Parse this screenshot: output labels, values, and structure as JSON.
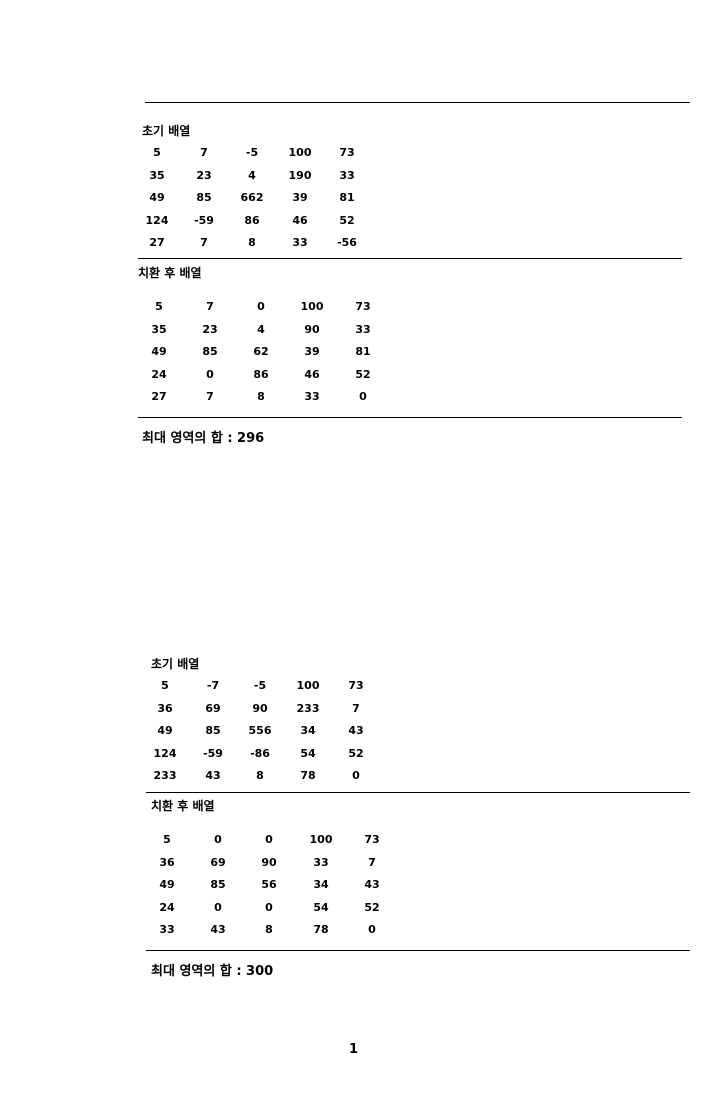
{
  "block1": {
    "initial_label": "초기 배열",
    "initial": [
      [
        "5",
        "7",
        "-5",
        "100",
        "73"
      ],
      [
        "35",
        "23",
        "4",
        "190",
        "33"
      ],
      [
        "49",
        "85",
        "662",
        "39",
        "81"
      ],
      [
        "124",
        "-59",
        "86",
        "46",
        "52"
      ],
      [
        "27",
        "7",
        "8",
        "33",
        "-56"
      ]
    ],
    "replaced_label": "치환 후 배열",
    "replaced": [
      [
        "5",
        "7",
        "0",
        "100",
        "73"
      ],
      [
        "35",
        "23",
        "4",
        "90",
        "33"
      ],
      [
        "49",
        "85",
        "62",
        "39",
        "81"
      ],
      [
        "24",
        "0",
        "86",
        "46",
        "52"
      ],
      [
        "27",
        "7",
        "8",
        "33",
        "0"
      ]
    ],
    "sum_text": "최대 영역의 합 : 296"
  },
  "block2": {
    "initial_label": "초기 배열",
    "initial": [
      [
        "5",
        "-7",
        "-5",
        "100",
        "73"
      ],
      [
        "36",
        "69",
        "90",
        "233",
        "7"
      ],
      [
        "49",
        "85",
        "556",
        "34",
        "43"
      ],
      [
        "124",
        "-59",
        "-86",
        "54",
        "52"
      ],
      [
        "233",
        "43",
        "8",
        "78",
        "0"
      ]
    ],
    "replaced_label": "치환 후 배열",
    "replaced": [
      [
        "5",
        "0",
        "0",
        "100",
        "73"
      ],
      [
        "36",
        "69",
        "90",
        "33",
        "7"
      ],
      [
        "49",
        "85",
        "56",
        "34",
        "43"
      ],
      [
        "24",
        "0",
        "0",
        "54",
        "52"
      ],
      [
        "33",
        "43",
        "8",
        "78",
        "0"
      ]
    ],
    "sum_text": "최대 영역의 합 : 300"
  },
  "page_number": "1"
}
